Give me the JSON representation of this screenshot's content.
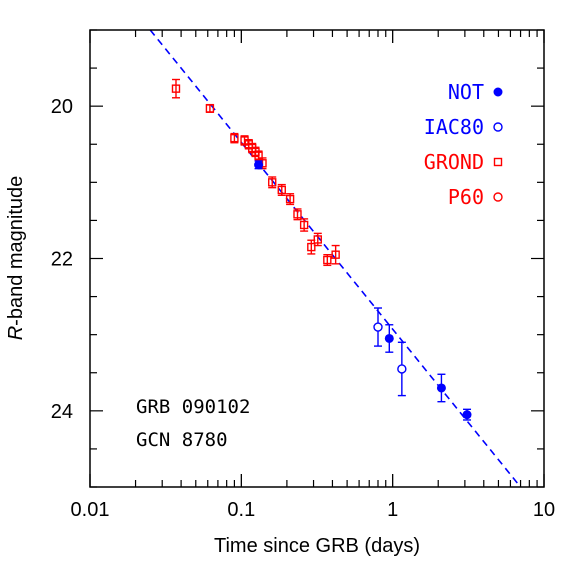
{
  "chart_data": {
    "type": "scatter",
    "xscale": "log",
    "yscale": "linear-inverted",
    "xlim": [
      0.01,
      10
    ],
    "ylim": [
      19,
      25
    ],
    "xlabel": "Time since GRB (days)",
    "ylabel_italic": "R",
    "ylabel_rest": "-band magnitude",
    "xticks": [
      0.01,
      0.1,
      1,
      10
    ],
    "xtick_labels": [
      "0.01",
      "0.1",
      "1",
      "10"
    ],
    "yticks": [
      20,
      22,
      24
    ],
    "ytick_labels": [
      "20",
      "22",
      "24"
    ],
    "annotations": [
      "GRB 090102",
      "GCN 8780"
    ],
    "legend_placement": "top-right",
    "fit_line": {
      "style": "dashed",
      "color": "#0000ff",
      "x": [
        0.025,
        7.0
      ],
      "y": [
        19.0,
        25.0
      ]
    },
    "series": [
      {
        "name": "NOT",
        "marker": "filled-circle",
        "color": "#0000ff",
        "points": [
          {
            "x": 0.13,
            "y": 20.77,
            "err": 0.05
          },
          {
            "x": 0.95,
            "y": 23.05,
            "err": 0.18
          },
          {
            "x": 2.1,
            "y": 23.7,
            "err": 0.18
          },
          {
            "x": 3.1,
            "y": 24.05,
            "err": 0.07
          }
        ]
      },
      {
        "name": "IAC80",
        "marker": "open-circle",
        "color": "#0000ff",
        "points": [
          {
            "x": 0.8,
            "y": 22.9,
            "err": 0.25
          },
          {
            "x": 1.15,
            "y": 23.45,
            "err": 0.35
          }
        ]
      },
      {
        "name": "GROND",
        "marker": "open-square",
        "color": "#ff0000",
        "points": [
          {
            "x": 0.037,
            "y": 19.77,
            "err": 0.12
          },
          {
            "x": 0.062,
            "y": 20.03,
            "err": 0.05
          },
          {
            "x": 0.09,
            "y": 20.42,
            "err": 0.06
          },
          {
            "x": 0.105,
            "y": 20.45,
            "err": 0.06
          },
          {
            "x": 0.112,
            "y": 20.5,
            "err": 0.06
          },
          {
            "x": 0.118,
            "y": 20.55,
            "err": 0.06
          },
          {
            "x": 0.124,
            "y": 20.6,
            "err": 0.06
          },
          {
            "x": 0.13,
            "y": 20.65,
            "err": 0.06
          },
          {
            "x": 0.138,
            "y": 20.75,
            "err": 0.07
          },
          {
            "x": 0.16,
            "y": 21.0,
            "err": 0.07
          },
          {
            "x": 0.185,
            "y": 21.1,
            "err": 0.07
          },
          {
            "x": 0.21,
            "y": 21.22,
            "err": 0.07
          },
          {
            "x": 0.235,
            "y": 21.42,
            "err": 0.07
          },
          {
            "x": 0.26,
            "y": 21.56,
            "err": 0.08
          },
          {
            "x": 0.29,
            "y": 21.85,
            "err": 0.09
          },
          {
            "x": 0.32,
            "y": 21.75,
            "err": 0.08
          },
          {
            "x": 0.37,
            "y": 22.02,
            "err": 0.07
          },
          {
            "x": 0.42,
            "y": 21.95,
            "err": 0.12
          }
        ]
      },
      {
        "name": "P60",
        "marker": "open-circle",
        "color": "#ff0000",
        "points": []
      }
    ]
  }
}
